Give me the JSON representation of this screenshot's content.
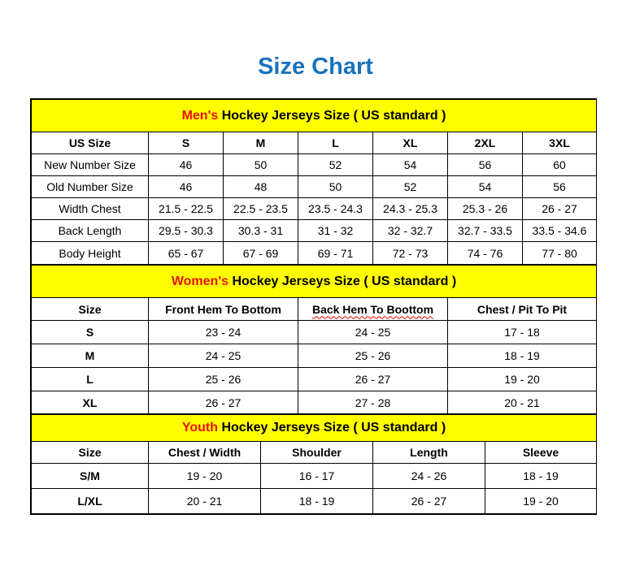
{
  "title": "Size Chart",
  "sections": [
    {
      "id": "men",
      "accent": "Men's",
      "heading": " Hockey Jerseys Size ( US standard )",
      "headers": [
        "US Size",
        "S",
        "M",
        "L",
        "XL",
        "2XL",
        "3XL"
      ],
      "rows": [
        [
          "New Number Size",
          "46",
          "50",
          "52",
          "54",
          "56",
          "60"
        ],
        [
          "Old Number Size",
          "46",
          "48",
          "50",
          "52",
          "54",
          "56"
        ],
        [
          "Width Chest",
          "21.5 - 22.5",
          "22.5 - 23.5",
          "23.5 - 24.3",
          "24.3 - 25.3",
          "25.3 - 26",
          "26 - 27"
        ],
        [
          "Back Length",
          "29.5 - 30.3",
          "30.3 - 31",
          "31 - 32",
          "32 - 32.7",
          "32.7 - 33.5",
          "33.5 - 34.6"
        ],
        [
          "Body Height",
          "65 - 67",
          "67 - 69",
          "69 - 71",
          "72 - 73",
          "74 - 76",
          "77 - 80"
        ]
      ]
    },
    {
      "id": "women",
      "accent": "Women's",
      "heading": " Hockey Jerseys Size ( US standard )",
      "headers": [
        "Size",
        "Front Hem To Bottom",
        "Back Hem To Boottom",
        "Chest / Pit To Pit"
      ],
      "rows": [
        [
          "S",
          "23 - 24",
          "24 - 25",
          "17 - 18"
        ],
        [
          "M",
          "24 - 25",
          "25 - 26",
          "18 - 19"
        ],
        [
          "L",
          "25 - 26",
          "26 - 27",
          "19 - 20"
        ],
        [
          "XL",
          "26 - 27",
          "27 - 28",
          "20 - 21"
        ]
      ]
    },
    {
      "id": "youth",
      "accent": "Youth",
      "heading": " Hockey Jerseys Size ( US standard )",
      "headers": [
        "Size",
        "Chest / Width",
        "Shoulder",
        "Length",
        "Sleeve"
      ],
      "rows": [
        [
          "S/M",
          "19 - 20",
          "16 - 17",
          "24 - 26",
          "18 - 19"
        ],
        [
          "L/XL",
          "20 - 21",
          "18 - 19",
          "26 - 27",
          "19 - 20"
        ]
      ]
    }
  ],
  "colors": {
    "title": "#1a72bb",
    "section_bg": "#ffff00",
    "accent": "#e8130f"
  }
}
